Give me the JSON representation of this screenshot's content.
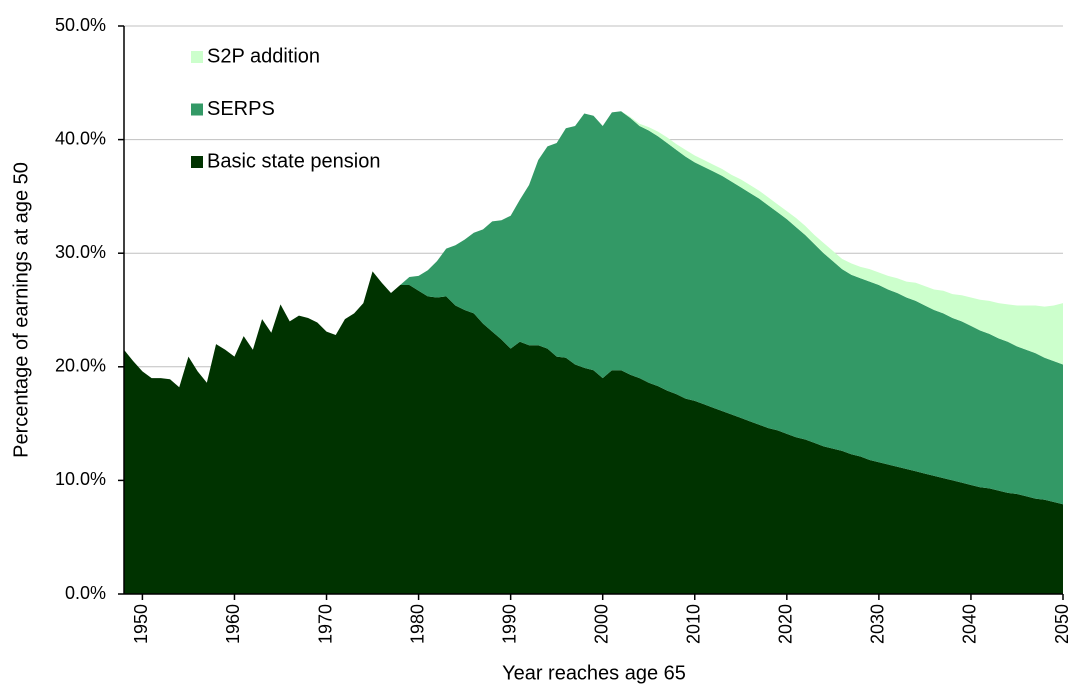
{
  "chart_data": {
    "type": "stacked_area",
    "x_label": "Year reaches age 65",
    "y_label": "Percentage of earnings at age 50",
    "x": [
      1948,
      1949,
      1950,
      1951,
      1952,
      1953,
      1954,
      1955,
      1956,
      1957,
      1958,
      1959,
      1960,
      1961,
      1962,
      1963,
      1964,
      1965,
      1966,
      1967,
      1968,
      1969,
      1970,
      1971,
      1972,
      1973,
      1974,
      1975,
      1976,
      1977,
      1978,
      1979,
      1980,
      1981,
      1982,
      1983,
      1984,
      1985,
      1986,
      1987,
      1988,
      1989,
      1990,
      1991,
      1992,
      1993,
      1994,
      1995,
      1996,
      1997,
      1998,
      1999,
      2000,
      2001,
      2002,
      2003,
      2004,
      2005,
      2006,
      2007,
      2008,
      2009,
      2010,
      2011,
      2012,
      2013,
      2014,
      2015,
      2016,
      2017,
      2018,
      2019,
      2020,
      2021,
      2022,
      2023,
      2024,
      2025,
      2026,
      2027,
      2028,
      2029,
      2030,
      2031,
      2032,
      2033,
      2034,
      2035,
      2036,
      2037,
      2038,
      2039,
      2040,
      2041,
      2042,
      2043,
      2044,
      2045,
      2046,
      2047,
      2048,
      2049,
      2050
    ],
    "series": [
      {
        "name": "Basic state pension",
        "color": "#003300",
        "values": [
          21.5,
          20.5,
          19.6,
          19.0,
          19.0,
          18.9,
          18.2,
          20.9,
          19.6,
          18.6,
          22.0,
          21.5,
          20.9,
          22.7,
          21.5,
          24.2,
          23.0,
          25.5,
          24.0,
          24.5,
          24.3,
          23.9,
          23.1,
          22.8,
          24.2,
          24.7,
          25.6,
          28.4,
          27.4,
          26.5,
          27.2,
          27.2,
          26.7,
          26.2,
          26.1,
          26.2,
          25.4,
          25.0,
          24.7,
          23.8,
          23.1,
          22.4,
          21.6,
          22.2,
          21.9,
          21.9,
          21.6,
          20.9,
          20.8,
          20.2,
          19.9,
          19.7,
          19.0,
          19.7,
          19.7,
          19.3,
          19.0,
          18.6,
          18.3,
          17.9,
          17.6,
          17.2,
          17.0,
          16.7,
          16.4,
          16.1,
          15.8,
          15.5,
          15.2,
          14.9,
          14.6,
          14.4,
          14.1,
          13.8,
          13.6,
          13.3,
          13.0,
          12.8,
          12.6,
          12.3,
          12.1,
          11.8,
          11.6,
          11.4,
          11.2,
          11.0,
          10.8,
          10.6,
          10.4,
          10.2,
          10.0,
          9.8,
          9.6,
          9.4,
          9.3,
          9.1,
          8.9,
          8.8,
          8.6,
          8.4,
          8.3,
          8.1,
          7.9
        ]
      },
      {
        "name": "SERPS",
        "color": "#339966",
        "values": [
          0,
          0,
          0,
          0,
          0,
          0,
          0,
          0,
          0,
          0,
          0,
          0,
          0,
          0,
          0,
          0,
          0,
          0,
          0,
          0,
          0,
          0,
          0,
          0,
          0,
          0,
          0,
          0,
          0,
          0,
          0,
          0.7,
          1.3,
          2.3,
          3.2,
          4.2,
          5.3,
          6.2,
          7.1,
          8.3,
          9.7,
          10.5,
          11.7,
          12.5,
          14.1,
          16.3,
          17.8,
          18.8,
          20.2,
          21.0,
          22.4,
          22.4,
          22.2,
          22.7,
          22.8,
          22.6,
          22.2,
          22.2,
          22.0,
          21.8,
          21.5,
          21.3,
          21.0,
          20.9,
          20.8,
          20.7,
          20.5,
          20.3,
          20.1,
          19.9,
          19.6,
          19.2,
          18.9,
          18.5,
          18.0,
          17.5,
          17.0,
          16.5,
          16.0,
          15.8,
          15.7,
          15.7,
          15.6,
          15.4,
          15.3,
          15.1,
          15.0,
          14.8,
          14.6,
          14.5,
          14.3,
          14.2,
          14.0,
          13.8,
          13.6,
          13.4,
          13.3,
          13.0,
          12.9,
          12.8,
          12.5,
          12.4,
          12.3
        ]
      },
      {
        "name": "S2P addition",
        "color": "#ccffcc",
        "values": [
          0,
          0,
          0,
          0,
          0,
          0,
          0,
          0,
          0,
          0,
          0,
          0,
          0,
          0,
          0,
          0,
          0,
          0,
          0,
          0,
          0,
          0,
          0,
          0,
          0,
          0,
          0,
          0,
          0,
          0,
          0,
          0,
          0,
          0,
          0,
          0,
          0,
          0,
          0,
          0,
          0,
          0,
          0,
          0,
          0,
          0,
          0,
          0,
          0,
          0,
          0,
          0,
          0,
          0,
          0,
          0.1,
          0.2,
          0.3,
          0.4,
          0.5,
          0.5,
          0.6,
          0.6,
          0.6,
          0.6,
          0.6,
          0.6,
          0.7,
          0.7,
          0.7,
          0.7,
          0.7,
          0.7,
          0.8,
          0.8,
          0.8,
          0.9,
          0.9,
          0.9,
          1.0,
          1.0,
          1.1,
          1.1,
          1.2,
          1.3,
          1.4,
          1.6,
          1.7,
          1.8,
          2.0,
          2.1,
          2.3,
          2.5,
          2.7,
          2.9,
          3.1,
          3.3,
          3.6,
          3.9,
          4.2,
          4.5,
          4.9,
          5.4
        ]
      }
    ],
    "xlim": [
      1948,
      2050
    ],
    "xticks": [
      1950,
      1960,
      1970,
      1980,
      1990,
      2000,
      2010,
      2020,
      2030,
      2040,
      2050
    ],
    "ylim": [
      0,
      50
    ],
    "yticks": [
      {
        "value": 0,
        "label": "0.0%"
      },
      {
        "value": 10,
        "label": "10.0%"
      },
      {
        "value": 20,
        "label": "20.0%"
      },
      {
        "value": 30,
        "label": "30.0%"
      },
      {
        "value": 40,
        "label": "40.0%"
      },
      {
        "value": 50,
        "label": "50.0%"
      }
    ],
    "grid": true,
    "legend": "top-left"
  }
}
